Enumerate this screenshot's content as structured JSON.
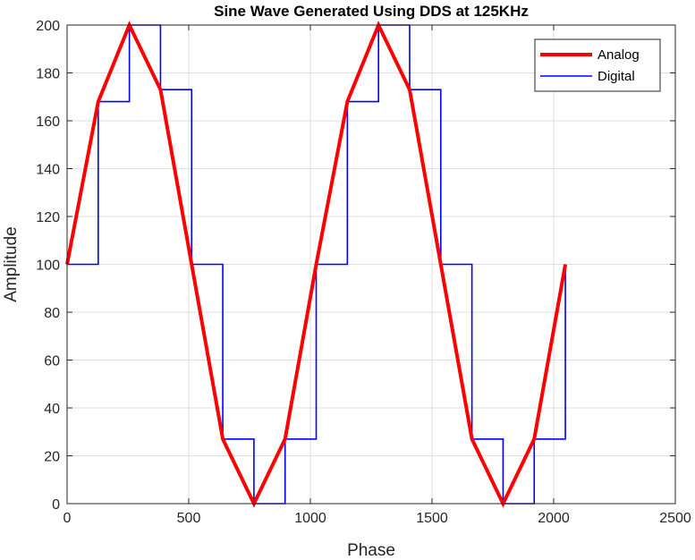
{
  "chart_data": {
    "type": "line",
    "title": "Sine Wave Generated Using DDS at 125KHz",
    "xlabel": "Phase",
    "ylabel": "Amplitude",
    "xlim": [
      0,
      2500
    ],
    "ylim": [
      0,
      200
    ],
    "xticks": [
      0,
      500,
      1000,
      1500,
      2000,
      2500
    ],
    "yticks": [
      0,
      20,
      40,
      60,
      80,
      100,
      120,
      140,
      160,
      180,
      200
    ],
    "grid": true,
    "legend_position": "top-right",
    "series": [
      {
        "name": "Analog",
        "color": "#ff0000",
        "style": "line",
        "x": [
          0,
          128,
          256,
          384,
          512,
          640,
          768,
          896,
          1024,
          1152,
          1280,
          1408,
          1536,
          1664,
          1792,
          1920,
          2048
        ],
        "y": [
          100,
          168,
          200,
          173,
          100,
          27,
          0,
          27,
          100,
          168,
          200,
          173,
          100,
          27,
          0,
          27,
          100
        ]
      },
      {
        "name": "Digital",
        "color": "#0000ff",
        "style": "step",
        "x": [
          0,
          128,
          256,
          384,
          512,
          640,
          768,
          896,
          1024,
          1152,
          1280,
          1408,
          1536,
          1664,
          1792,
          1920,
          2048
        ],
        "y": [
          100,
          168,
          200,
          173,
          100,
          27,
          0,
          27,
          100,
          168,
          200,
          173,
          100,
          27,
          0,
          27,
          100
        ]
      }
    ]
  }
}
